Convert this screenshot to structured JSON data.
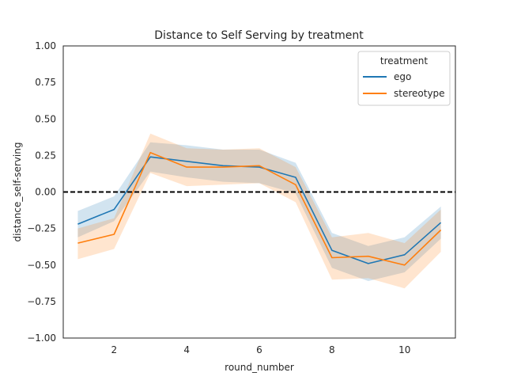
{
  "chart_data": {
    "type": "line",
    "title": "Distance to Self Serving by treatment",
    "xlabel": "round_number",
    "ylabel": "distance_self-serving",
    "xlim": [
      0.6,
      11.4
    ],
    "ylim": [
      -1.0,
      1.0
    ],
    "xticks": [
      2,
      4,
      6,
      8,
      10
    ],
    "yticks": [
      -1.0,
      -0.75,
      -0.5,
      -0.25,
      0.0,
      0.25,
      0.5,
      0.75,
      1.0
    ],
    "ytick_labels": [
      "−1.00",
      "−0.75",
      "−0.50",
      "−0.25",
      "0.00",
      "0.25",
      "0.50",
      "0.75",
      "1.00"
    ],
    "grid": false,
    "reference_line": {
      "y": 0.0,
      "style": "dashed",
      "color": "#000000"
    },
    "legend": {
      "title": "treatment",
      "placement": "top-right"
    },
    "x": [
      1,
      2,
      3,
      4,
      5,
      6,
      7,
      8,
      9,
      10,
      11
    ],
    "series": [
      {
        "name": "ego",
        "color": "#1f77b4",
        "values": [
          -0.22,
          -0.12,
          0.24,
          0.21,
          0.18,
          0.17,
          0.1,
          -0.4,
          -0.49,
          -0.43,
          -0.21
        ],
        "ci_lower": [
          -0.31,
          -0.2,
          0.14,
          0.1,
          0.07,
          0.06,
          -0.01,
          -0.52,
          -0.61,
          -0.55,
          -0.32
        ],
        "ci_upper": [
          -0.13,
          -0.03,
          0.34,
          0.32,
          0.29,
          0.29,
          0.2,
          -0.28,
          -0.37,
          -0.31,
          -0.1
        ]
      },
      {
        "name": "stereotype",
        "color": "#ff7f0e",
        "values": [
          -0.35,
          -0.29,
          0.27,
          0.17,
          0.17,
          0.18,
          0.05,
          -0.45,
          -0.44,
          -0.5,
          -0.26
        ],
        "ci_lower": [
          -0.46,
          -0.39,
          0.13,
          0.04,
          0.05,
          0.06,
          -0.07,
          -0.6,
          -0.59,
          -0.66,
          -0.41
        ],
        "ci_upper": [
          -0.25,
          -0.18,
          0.4,
          0.3,
          0.29,
          0.3,
          0.17,
          -0.31,
          -0.28,
          -0.35,
          -0.12
        ]
      }
    ]
  }
}
